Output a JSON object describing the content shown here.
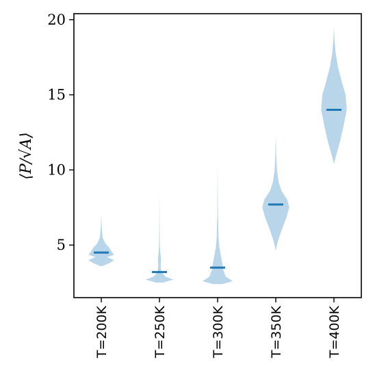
{
  "chart_data": {
    "type": "violin",
    "title": "",
    "xlabel": "",
    "ylabel": "⟨P/√A⟩",
    "categories": [
      "T=200K",
      "T=250K",
      "T=300K",
      "T=350K",
      "T=400K"
    ],
    "ylim": [
      1.5,
      20.4
    ],
    "yticks": [
      5,
      10,
      15,
      20
    ],
    "grid": false,
    "fill_color": "#b9d5ea",
    "median_color": "#1f77b4",
    "medians": [
      4.5,
      3.2,
      3.5,
      7.7,
      14.0
    ],
    "distributions": [
      {
        "category": "T=200K",
        "min": 3.6,
        "max": 7.0,
        "median": 4.5,
        "profile": [
          [
            3.6,
            0.05
          ],
          [
            3.8,
            0.35
          ],
          [
            4.0,
            0.55
          ],
          [
            4.2,
            0.25
          ],
          [
            4.35,
            0.55
          ],
          [
            4.55,
            0.45
          ],
          [
            4.8,
            0.35
          ],
          [
            5.1,
            0.18
          ],
          [
            5.5,
            0.06
          ],
          [
            6.2,
            0.02
          ],
          [
            7.0,
            0.0
          ]
        ]
      },
      {
        "category": "T=250K",
        "min": 2.5,
        "max": 8.5,
        "median": 3.2,
        "profile": [
          [
            2.5,
            0.15
          ],
          [
            2.7,
            0.6
          ],
          [
            2.9,
            0.25
          ],
          [
            3.2,
            0.08
          ],
          [
            3.6,
            0.05
          ],
          [
            4.0,
            0.07
          ],
          [
            4.3,
            0.05
          ],
          [
            4.8,
            0.02
          ],
          [
            6.0,
            0.01
          ],
          [
            8.5,
            0.0
          ]
        ]
      },
      {
        "category": "T=300K",
        "min": 2.4,
        "max": 10.4,
        "median": 3.5,
        "profile": [
          [
            2.4,
            0.2
          ],
          [
            2.6,
            0.65
          ],
          [
            2.9,
            0.35
          ],
          [
            3.3,
            0.25
          ],
          [
            3.8,
            0.2
          ],
          [
            4.3,
            0.14
          ],
          [
            4.8,
            0.08
          ],
          [
            5.5,
            0.04
          ],
          [
            7.0,
            0.015
          ],
          [
            10.4,
            0.0
          ]
        ]
      },
      {
        "category": "T=350K",
        "min": 4.6,
        "max": 12.4,
        "median": 7.7,
        "profile": [
          [
            4.6,
            0.0
          ],
          [
            5.2,
            0.08
          ],
          [
            6.0,
            0.25
          ],
          [
            6.8,
            0.45
          ],
          [
            7.5,
            0.58
          ],
          [
            8.0,
            0.5
          ],
          [
            8.6,
            0.25
          ],
          [
            9.2,
            0.12
          ],
          [
            10.0,
            0.05
          ],
          [
            11.0,
            0.02
          ],
          [
            12.4,
            0.0
          ]
        ]
      },
      {
        "category": "T=400K",
        "min": 10.4,
        "max": 19.5,
        "median": 14.0,
        "profile": [
          [
            10.4,
            0.0
          ],
          [
            11.0,
            0.1
          ],
          [
            12.0,
            0.28
          ],
          [
            13.0,
            0.42
          ],
          [
            14.0,
            0.55
          ],
          [
            15.0,
            0.5
          ],
          [
            15.8,
            0.35
          ],
          [
            16.8,
            0.18
          ],
          [
            17.8,
            0.07
          ],
          [
            18.8,
            0.02
          ],
          [
            19.5,
            0.0
          ]
        ]
      }
    ]
  }
}
